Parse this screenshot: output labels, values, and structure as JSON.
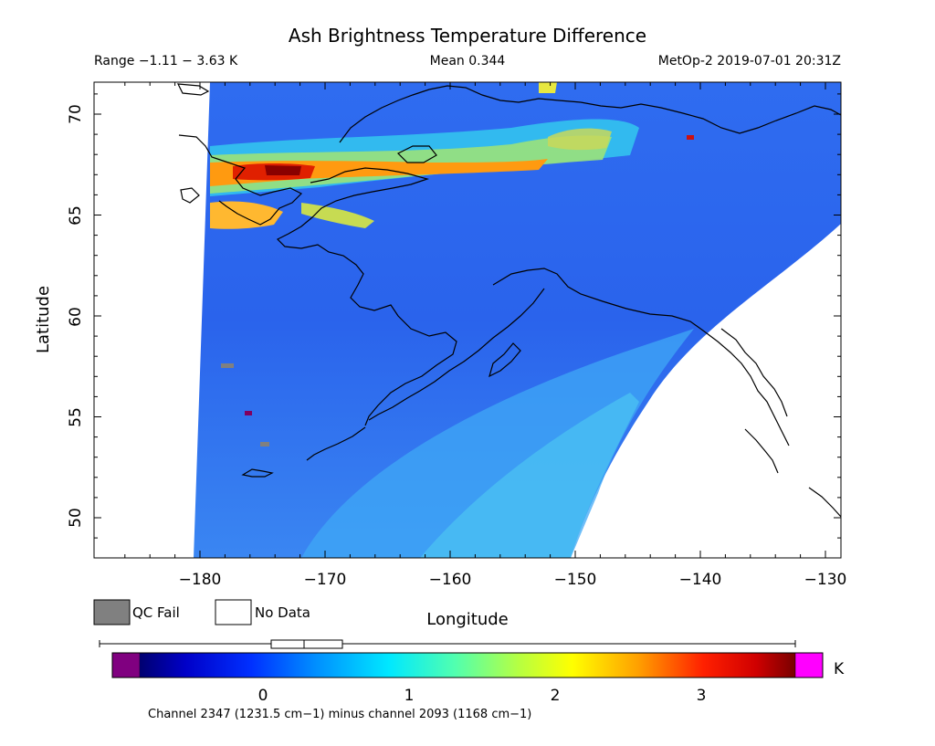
{
  "header": {
    "title": "Ash Brightness Temperature Difference",
    "range": "Range −1.11 − 3.63 K",
    "mean": "Mean 0.344",
    "satellite": "MetOp-2 2019-07-01 20:31Z"
  },
  "map": {
    "xlabel": "Longitude",
    "ylabel": "Latitude",
    "x_ticks": [
      "−180",
      "−170",
      "−160",
      "−150",
      "−140",
      "−130"
    ],
    "y_ticks": [
      "70",
      "65",
      "60",
      "55",
      "50"
    ]
  },
  "legend": {
    "qc_fail": "QC Fail",
    "no_data": "No Data",
    "qc_color": "#808080",
    "nodata_color": "#ffffff"
  },
  "colorbar": {
    "unit": "K",
    "tick_labels": [
      "0",
      "1",
      "2",
      "3"
    ],
    "underflow_color": "#800080",
    "overflow_color": "#ff00ff",
    "caption": "Channel 2347 (1231.5 cm−1) minus channel 2093 (1168 cm−1)"
  }
}
